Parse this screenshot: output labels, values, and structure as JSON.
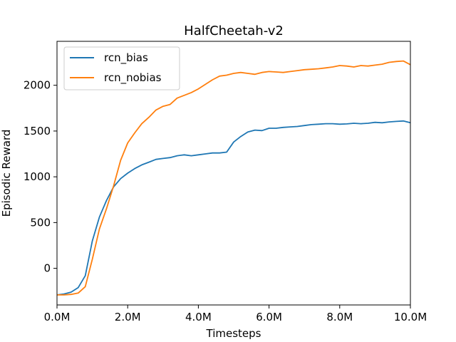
{
  "chart_data": {
    "type": "line",
    "title": "HalfCheetah-v2",
    "xlabel": "Timesteps",
    "ylabel": "Episodic Reward",
    "xlim": [
      0,
      10000000
    ],
    "ylim": [
      -400,
      2480
    ],
    "x_ticks": [
      {
        "value": 0,
        "label": "0.0M"
      },
      {
        "value": 2000000,
        "label": "2.0M"
      },
      {
        "value": 4000000,
        "label": "4.0M"
      },
      {
        "value": 6000000,
        "label": "6.0M"
      },
      {
        "value": 8000000,
        "label": "8.0M"
      },
      {
        "value": 10000000,
        "label": "10.0M"
      }
    ],
    "y_ticks": [
      {
        "value": 0,
        "label": "0"
      },
      {
        "value": 500,
        "label": "500"
      },
      {
        "value": 1000,
        "label": "1000"
      },
      {
        "value": 1500,
        "label": "1500"
      },
      {
        "value": 2000,
        "label": "2000"
      }
    ],
    "grid": false,
    "legend_position": "top-left",
    "series": [
      {
        "name": "rcn_bias",
        "color": "#1f77b4",
        "x": [
          0,
          200000,
          400000,
          600000,
          800000,
          1000000,
          1200000,
          1400000,
          1600000,
          1800000,
          2000000,
          2200000,
          2400000,
          2600000,
          2800000,
          3000000,
          3200000,
          3400000,
          3600000,
          3800000,
          4000000,
          4200000,
          4400000,
          4600000,
          4800000,
          5000000,
          5200000,
          5400000,
          5600000,
          5800000,
          6000000,
          6200000,
          6400000,
          6600000,
          6800000,
          7000000,
          7200000,
          7400000,
          7600000,
          7800000,
          8000000,
          8200000,
          8400000,
          8600000,
          8800000,
          9000000,
          9200000,
          9400000,
          9600000,
          9800000,
          10000000
        ],
        "y": [
          -290,
          -280,
          -260,
          -210,
          -80,
          300,
          560,
          740,
          890,
          980,
          1040,
          1090,
          1130,
          1160,
          1190,
          1200,
          1210,
          1230,
          1240,
          1230,
          1240,
          1250,
          1260,
          1260,
          1270,
          1380,
          1440,
          1490,
          1510,
          1505,
          1530,
          1530,
          1540,
          1545,
          1550,
          1560,
          1570,
          1575,
          1580,
          1580,
          1575,
          1578,
          1585,
          1580,
          1585,
          1595,
          1590,
          1600,
          1605,
          1610,
          1590
        ]
      },
      {
        "name": "rcn_nobias",
        "color": "#ff7f0e",
        "x": [
          0,
          200000,
          400000,
          600000,
          800000,
          1000000,
          1200000,
          1400000,
          1600000,
          1800000,
          2000000,
          2200000,
          2400000,
          2600000,
          2800000,
          3000000,
          3200000,
          3400000,
          3600000,
          3800000,
          4000000,
          4200000,
          4400000,
          4600000,
          4800000,
          5000000,
          5200000,
          5400000,
          5600000,
          5800000,
          6000000,
          6200000,
          6400000,
          6600000,
          6800000,
          7000000,
          7200000,
          7400000,
          7600000,
          7800000,
          8000000,
          8200000,
          8400000,
          8600000,
          8800000,
          9000000,
          9200000,
          9400000,
          9600000,
          9800000,
          10000000
        ],
        "y": [
          -290,
          -290,
          -285,
          -270,
          -200,
          100,
          430,
          650,
          900,
          1180,
          1370,
          1480,
          1580,
          1650,
          1730,
          1770,
          1790,
          1860,
          1890,
          1920,
          1960,
          2010,
          2060,
          2100,
          2110,
          2130,
          2140,
          2130,
          2120,
          2140,
          2150,
          2145,
          2140,
          2150,
          2160,
          2170,
          2175,
          2180,
          2190,
          2200,
          2215,
          2210,
          2200,
          2215,
          2210,
          2220,
          2230,
          2250,
          2260,
          2265,
          2225
        ]
      }
    ]
  }
}
